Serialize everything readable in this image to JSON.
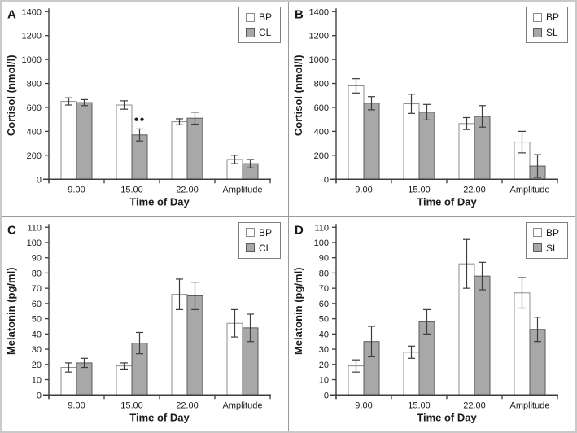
{
  "figure": {
    "xlabel": "Time of Day",
    "categories": [
      "9.00",
      "15.00",
      "22.00",
      "Amplitude"
    ]
  },
  "colors": {
    "bar_white_fill": "#ffffff",
    "bar_white_border": "#8c8c8c",
    "bar_gray_fill": "#a8a8a8",
    "bar_gray_border": "#5a5a5a",
    "axis": "#3d3d3d",
    "error_bar": "#3d3d3d",
    "divider": "#9a9a9a",
    "figure_border": "#c9c9c9"
  },
  "chart_data": [
    {
      "type": "bar",
      "panel_label": "A",
      "ylabel": "Cortisol (nmol/l)",
      "xlabel": "Time of Day",
      "ylim": [
        0,
        1400
      ],
      "ytick_step": 200,
      "grid": false,
      "legend_position": "top-right",
      "categories": [
        "9.00",
        "15.00",
        "22.00",
        "Amplitude"
      ],
      "series": [
        {
          "name": "BP",
          "fill": "#ffffff",
          "stroke": "#8c8c8c",
          "values": [
            650,
            620,
            480,
            165
          ],
          "errors": [
            30,
            35,
            25,
            35
          ]
        },
        {
          "name": "CL",
          "fill": "#a8a8a8",
          "stroke": "#5a5a5a",
          "values": [
            640,
            370,
            510,
            130
          ],
          "errors": [
            25,
            50,
            50,
            35
          ]
        }
      ],
      "annotations": [
        {
          "text": "●●",
          "category_index": 1,
          "series_index": 1
        }
      ]
    },
    {
      "type": "bar",
      "panel_label": "B",
      "ylabel": "Cortisol (nmol/l)",
      "xlabel": "Time of Day",
      "ylim": [
        0,
        1400
      ],
      "ytick_step": 200,
      "grid": false,
      "legend_position": "top-right",
      "categories": [
        "9.00",
        "15.00",
        "22.00",
        "Amplitude"
      ],
      "series": [
        {
          "name": "BP",
          "fill": "#ffffff",
          "stroke": "#8c8c8c",
          "values": [
            780,
            630,
            465,
            310
          ],
          "errors": [
            60,
            80,
            50,
            90
          ]
        },
        {
          "name": "SL",
          "fill": "#a8a8a8",
          "stroke": "#5a5a5a",
          "values": [
            635,
            560,
            525,
            110
          ],
          "errors": [
            55,
            65,
            90,
            95
          ]
        }
      ],
      "annotations": []
    },
    {
      "type": "bar",
      "panel_label": "C",
      "ylabel": "Melatonin (pg/ml)",
      "xlabel": "Time of Day",
      "ylim": [
        0,
        110
      ],
      "ytick_step": 10,
      "grid": false,
      "legend_position": "top-right",
      "categories": [
        "9.00",
        "15.00",
        "22.00",
        "Amplitude"
      ],
      "series": [
        {
          "name": "BP",
          "fill": "#ffffff",
          "stroke": "#8c8c8c",
          "values": [
            18,
            19,
            66,
            47
          ],
          "errors": [
            3,
            2,
            10,
            9
          ]
        },
        {
          "name": "CL",
          "fill": "#a8a8a8",
          "stroke": "#5a5a5a",
          "values": [
            21,
            34,
            65,
            44
          ],
          "errors": [
            3,
            7,
            9,
            9
          ]
        }
      ],
      "annotations": []
    },
    {
      "type": "bar",
      "panel_label": "D",
      "ylabel": "Melatonin (pg/ml)",
      "xlabel": "Time of Day",
      "ylim": [
        0,
        110
      ],
      "ytick_step": 10,
      "grid": false,
      "legend_position": "top-right",
      "categories": [
        "9.00",
        "15.00",
        "22.00",
        "Amplitude"
      ],
      "series": [
        {
          "name": "BP",
          "fill": "#ffffff",
          "stroke": "#8c8c8c",
          "values": [
            19,
            28,
            86,
            67
          ],
          "errors": [
            4,
            4,
            16,
            10
          ]
        },
        {
          "name": "SL",
          "fill": "#a8a8a8",
          "stroke": "#5a5a5a",
          "values": [
            35,
            48,
            78,
            43
          ],
          "errors": [
            10,
            8,
            9,
            8
          ]
        }
      ],
      "annotations": []
    }
  ]
}
